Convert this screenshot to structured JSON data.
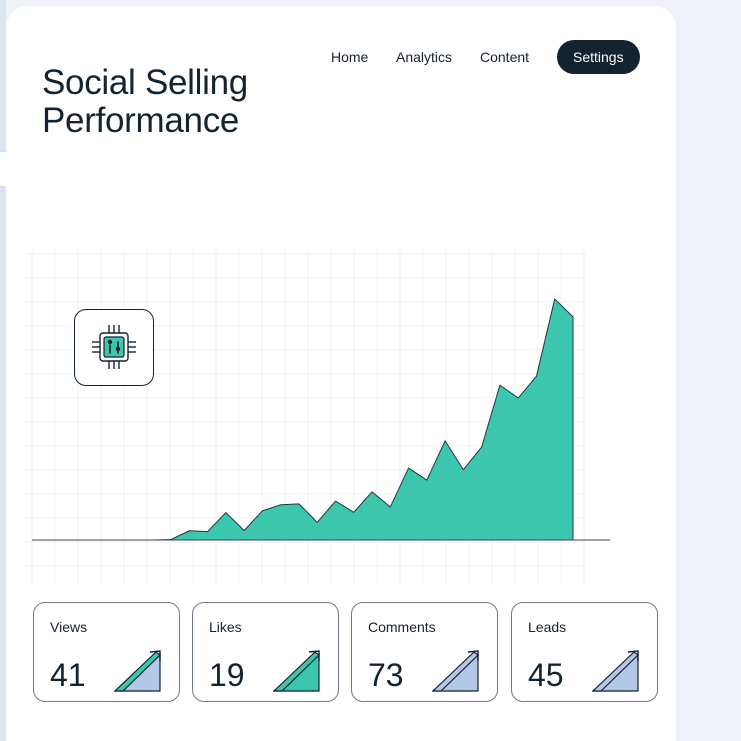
{
  "page": {
    "title": "Social Selling Performance"
  },
  "nav": {
    "items": [
      {
        "label": "Home"
      },
      {
        "label": "Analytics"
      },
      {
        "label": "Content"
      },
      {
        "label": "Settings",
        "active": true
      }
    ]
  },
  "colors": {
    "accent": "#3cc6ae",
    "dark": "#13232f",
    "arrow_blue": "#b3c8e6"
  },
  "icons": {
    "badge": "microchip-icon",
    "stat_trend": "trend-arrow-icon"
  },
  "chart_data": {
    "type": "area",
    "x": [
      0,
      1,
      2,
      3,
      4,
      5,
      6,
      7,
      8,
      9,
      10,
      11,
      12,
      13,
      14,
      15,
      16,
      17,
      18,
      19,
      20,
      21,
      22,
      23,
      24,
      25,
      26
    ],
    "y": [
      0,
      0,
      0,
      0,
      0.2,
      3.3,
      3.0,
      9.8,
      3.4,
      10.4,
      12.6,
      12.9,
      6.3,
      13.9,
      9.9,
      17.2,
      11.8,
      25.7,
      21.4,
      35.4,
      25.1,
      33.2,
      55.3,
      50.7,
      58.5,
      86.1,
      79.7
    ],
    "ylim": [
      0,
      100
    ],
    "xlim": [
      0,
      26
    ],
    "grid": true,
    "title": "",
    "xlabel": "",
    "ylabel": ""
  },
  "stats": [
    {
      "label": "Views",
      "value": "41",
      "arrow": "green"
    },
    {
      "label": "Likes",
      "value": "19",
      "arrow": "green"
    },
    {
      "label": "Comments",
      "value": "73",
      "arrow": "blue"
    },
    {
      "label": "Leads",
      "value": "45",
      "arrow": "blue"
    }
  ]
}
